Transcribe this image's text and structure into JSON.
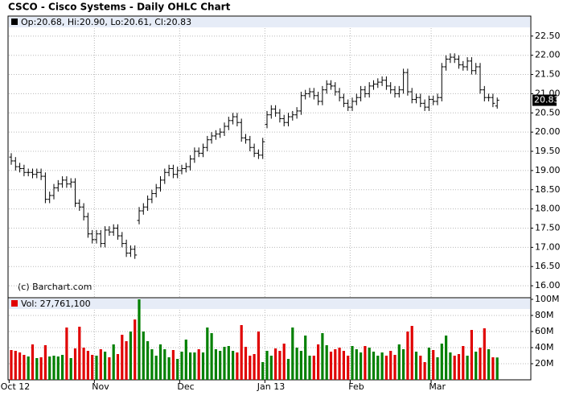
{
  "chart_data": [
    {
      "type": "ohlc",
      "title": "CSCO - Cisco Systems - Daily OHLC Chart",
      "legend_text": "Op:20.68, Hi:20.90, Lo:20.61, Cl:20.83",
      "annotation": "(c) Barchart.com",
      "last_price_label": "20.83",
      "color": "#000000",
      "grid": true,
      "categories": [
        "Oct 12",
        null,
        null,
        null,
        null,
        null,
        null,
        null,
        null,
        null,
        null,
        null,
        null,
        null,
        null,
        null,
        null,
        null,
        null,
        null,
        "Nov",
        null,
        null,
        null,
        null,
        null,
        null,
        null,
        null,
        null,
        null,
        null,
        null,
        null,
        null,
        null,
        null,
        null,
        null,
        null,
        "Dec",
        null,
        null,
        null,
        null,
        null,
        null,
        null,
        null,
        null,
        null,
        null,
        null,
        null,
        null,
        null,
        null,
        null,
        null,
        null,
        "Jan 13",
        null,
        null,
        null,
        null,
        null,
        null,
        null,
        null,
        null,
        null,
        null,
        null,
        null,
        null,
        null,
        null,
        null,
        null,
        null,
        "Feb",
        null,
        null,
        null,
        null,
        null,
        null,
        null,
        null,
        null,
        null,
        null,
        null,
        null,
        null,
        null,
        null,
        null,
        null,
        "Mar",
        null,
        null,
        null,
        null,
        null,
        null,
        null,
        null,
        null,
        null,
        null,
        null,
        null,
        null,
        null
      ],
      "open": [
        19.35,
        19.25,
        19.1,
        19.05,
        18.95,
        18.95,
        18.9,
        18.95,
        18.85,
        18.25,
        18.35,
        18.55,
        18.65,
        18.75,
        18.65,
        18.7,
        18.15,
        18.05,
        17.8,
        17.35,
        17.2,
        17.35,
        17.1,
        17.45,
        17.4,
        17.5,
        17.3,
        17.1,
        16.85,
        16.95,
        17.7,
        17.95,
        18.05,
        18.25,
        18.4,
        18.55,
        18.75,
        18.95,
        19.05,
        18.9,
        19.0,
        19.05,
        19.1,
        19.3,
        19.5,
        19.45,
        19.6,
        19.8,
        19.9,
        19.95,
        20.0,
        20.15,
        20.3,
        20.4,
        20.25,
        19.85,
        19.8,
        19.6,
        19.45,
        19.4,
        20.2,
        20.45,
        20.6,
        20.5,
        20.35,
        20.25,
        20.4,
        20.45,
        20.55,
        20.95,
        21.0,
        21.05,
        20.95,
        20.8,
        21.1,
        21.25,
        21.2,
        21.05,
        20.9,
        20.75,
        20.65,
        20.8,
        20.9,
        21.1,
        21.0,
        21.2,
        21.25,
        21.3,
        21.35,
        21.2,
        21.1,
        21.0,
        21.1,
        21.55,
        21.05,
        20.85,
        20.9,
        20.75,
        20.65,
        20.85,
        20.8,
        20.9,
        21.7,
        21.9,
        21.95,
        21.9,
        21.75,
        21.7,
        21.85,
        21.6,
        21.7,
        21.1,
        20.9,
        20.9,
        20.68
      ],
      "high": [
        19.45,
        19.35,
        19.2,
        19.15,
        19.05,
        19.05,
        19.05,
        19.05,
        18.95,
        18.45,
        18.65,
        18.75,
        18.85,
        18.85,
        18.8,
        18.8,
        18.25,
        18.15,
        17.9,
        17.45,
        17.45,
        17.45,
        17.55,
        17.55,
        17.6,
        17.6,
        17.4,
        17.2,
        17.05,
        17.05,
        18.05,
        18.15,
        18.35,
        18.5,
        18.65,
        18.85,
        19.05,
        19.15,
        19.15,
        19.1,
        19.15,
        19.2,
        19.4,
        19.6,
        19.6,
        19.7,
        19.9,
        20.0,
        20.05,
        20.1,
        20.25,
        20.4,
        20.5,
        20.5,
        20.35,
        19.95,
        19.9,
        19.7,
        19.55,
        19.85,
        20.55,
        20.7,
        20.7,
        20.6,
        20.45,
        20.5,
        20.55,
        20.65,
        21.05,
        21.1,
        21.15,
        21.15,
        21.05,
        21.2,
        21.35,
        21.35,
        21.3,
        21.15,
        21.0,
        20.85,
        20.9,
        21.0,
        21.2,
        21.2,
        21.3,
        21.35,
        21.4,
        21.45,
        21.45,
        21.3,
        21.2,
        21.2,
        21.65,
        21.65,
        21.15,
        21.0,
        21.0,
        20.85,
        20.95,
        20.95,
        21.0,
        21.8,
        22.0,
        22.05,
        22.05,
        22.0,
        21.85,
        21.95,
        21.95,
        21.8,
        21.8,
        21.2,
        21.0,
        21.0,
        20.9
      ],
      "low": [
        19.15,
        19.0,
        18.95,
        18.85,
        18.85,
        18.8,
        18.8,
        18.75,
        18.15,
        18.15,
        18.25,
        18.45,
        18.55,
        18.55,
        18.55,
        18.05,
        17.95,
        17.7,
        17.25,
        17.1,
        17.1,
        17.0,
        17.0,
        17.3,
        17.3,
        17.2,
        17.0,
        16.75,
        16.75,
        16.7,
        17.6,
        17.85,
        17.95,
        18.15,
        18.3,
        18.45,
        18.65,
        18.85,
        18.8,
        18.8,
        18.9,
        18.95,
        19.0,
        19.2,
        19.35,
        19.35,
        19.5,
        19.7,
        19.8,
        19.85,
        19.9,
        20.05,
        20.2,
        20.15,
        19.75,
        19.7,
        19.5,
        19.35,
        19.3,
        19.3,
        20.1,
        20.35,
        20.4,
        20.25,
        20.15,
        20.15,
        20.3,
        20.35,
        20.45,
        20.85,
        20.9,
        20.85,
        20.7,
        20.7,
        21.0,
        21.1,
        20.95,
        20.8,
        20.65,
        20.55,
        20.55,
        20.7,
        20.8,
        20.9,
        20.9,
        21.1,
        21.15,
        21.2,
        21.1,
        21.0,
        20.9,
        20.9,
        21.0,
        20.95,
        20.75,
        20.75,
        20.65,
        20.55,
        20.55,
        20.7,
        20.7,
        20.8,
        21.6,
        21.8,
        21.8,
        21.65,
        21.6,
        21.6,
        21.5,
        21.5,
        21.0,
        20.8,
        20.8,
        20.65,
        20.61
      ],
      "close": [
        19.25,
        19.1,
        19.05,
        18.95,
        18.95,
        18.9,
        18.95,
        18.85,
        18.25,
        18.35,
        18.55,
        18.65,
        18.75,
        18.65,
        18.7,
        18.15,
        18.05,
        17.8,
        17.35,
        17.2,
        17.35,
        17.1,
        17.45,
        17.4,
        17.5,
        17.3,
        17.1,
        16.85,
        16.95,
        16.8,
        17.95,
        18.05,
        18.25,
        18.4,
        18.55,
        18.75,
        18.95,
        19.05,
        18.9,
        19.0,
        19.05,
        19.1,
        19.3,
        19.5,
        19.45,
        19.6,
        19.8,
        19.9,
        19.95,
        20.0,
        20.15,
        20.3,
        20.4,
        20.25,
        19.85,
        19.8,
        19.6,
        19.45,
        19.4,
        19.75,
        20.45,
        20.6,
        20.5,
        20.35,
        20.25,
        20.4,
        20.45,
        20.55,
        20.95,
        21.0,
        21.05,
        20.95,
        20.8,
        21.1,
        21.25,
        21.2,
        21.05,
        20.9,
        20.75,
        20.65,
        20.8,
        20.9,
        21.1,
        21.0,
        21.2,
        21.25,
        21.3,
        21.35,
        21.2,
        21.1,
        21.0,
        21.1,
        21.55,
        21.05,
        20.85,
        20.9,
        20.75,
        20.65,
        20.85,
        20.8,
        20.9,
        21.7,
        21.9,
        21.95,
        21.9,
        21.75,
        21.7,
        21.85,
        21.6,
        21.7,
        21.1,
        20.9,
        20.9,
        20.75,
        20.83
      ],
      "ylim": [
        15.73,
        23.02
      ],
      "yticks": [
        {
          "value": 16,
          "label": "16.00"
        },
        {
          "value": 16.5,
          "label": "16.50"
        },
        {
          "value": 17,
          "label": "17.00"
        },
        {
          "value": 17.5,
          "label": "17.50"
        },
        {
          "value": 18,
          "label": "18.00"
        },
        {
          "value": 18.5,
          "label": "18.50"
        },
        {
          "value": 19,
          "label": "19.00"
        },
        {
          "value": 19.5,
          "label": "19.50"
        },
        {
          "value": 20,
          "label": "20.00"
        },
        {
          "value": 20.5,
          "label": "20.50"
        },
        {
          "value": 21,
          "label": "21.00"
        },
        {
          "value": 21.5,
          "label": "21.50"
        },
        {
          "value": 22,
          "label": "22.00"
        },
        {
          "value": 22.5,
          "label": "22.50"
        }
      ]
    },
    {
      "type": "bar",
      "legend_text": "Vol: 27,761,100",
      "up_color": "#008000",
      "down_color": "#e00000",
      "grid": true,
      "values": [
        37,
        36,
        34,
        31,
        29,
        44,
        27,
        28,
        43,
        29,
        30,
        29,
        31,
        65,
        27,
        39,
        66,
        40,
        36,
        31,
        30,
        38,
        35,
        28,
        44,
        32,
        56,
        48,
        60,
        75,
        105,
        60,
        48,
        38,
        30,
        44,
        38,
        28,
        37,
        26,
        35,
        50,
        34,
        34,
        38,
        34,
        65,
        58,
        38,
        36,
        41,
        42,
        36,
        34,
        68,
        41,
        30,
        32,
        60,
        22,
        36,
        30,
        39,
        36,
        45,
        26,
        65,
        40,
        36,
        55,
        30,
        30,
        44,
        58,
        43,
        35,
        38,
        40,
        36,
        30,
        42,
        38,
        34,
        42,
        40,
        35,
        30,
        34,
        30,
        36,
        31,
        44,
        38,
        60,
        67,
        35,
        30,
        22,
        40,
        37,
        28,
        45,
        55,
        34,
        30,
        32,
        42,
        30,
        62,
        35,
        40,
        64,
        38,
        28,
        27.7611
      ],
      "ylim": [
        0,
        100
      ],
      "yticks": [
        {
          "value": 20,
          "label": "20M"
        },
        {
          "value": 40,
          "label": "40M"
        },
        {
          "value": 60,
          "label": "60M"
        },
        {
          "value": 80,
          "label": "80M"
        },
        {
          "value": 100,
          "label": "100M"
        }
      ]
    }
  ]
}
